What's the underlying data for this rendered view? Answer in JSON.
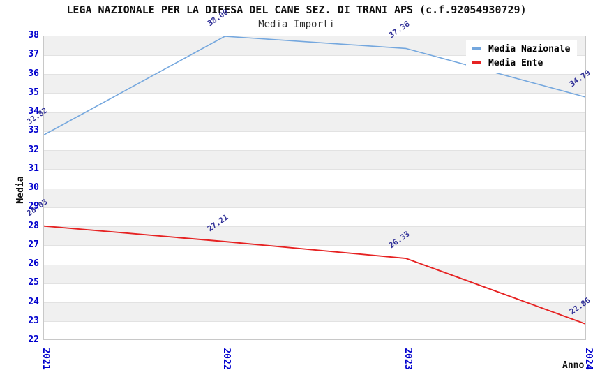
{
  "chart_data": {
    "type": "line",
    "title": "LEGA NAZIONALE PER LA DIFESA DEL CANE SEZ. DI TRANI APS (c.f.92054930729)",
    "subtitle": "Media Importi",
    "xlabel": "Anno",
    "ylabel": "Media",
    "x": [
      "2021",
      "2022",
      "2023",
      "2024"
    ],
    "series": [
      {
        "name": "Media Nazionale",
        "color": "#74A7DE",
        "values": [
          32.82,
          38.0,
          37.36,
          34.79
        ]
      },
      {
        "name": "Media Ente",
        "color": "#E62222",
        "values": [
          28.03,
          27.21,
          26.33,
          22.86
        ]
      }
    ],
    "ylim": [
      22,
      38
    ],
    "ytick_step": 1,
    "grid": true,
    "band_fill": "alternating",
    "legend_position": "top-right",
    "point_label_decimals": 2,
    "colors": {
      "axis_tick": "#0000CD",
      "point_label": "#333399",
      "band": "#F0F0F0",
      "grid_line": "#E2E2E2",
      "plot_border": "#C8C8C8",
      "title": "#111111",
      "legend_bg": "#FFFFFF"
    }
  }
}
